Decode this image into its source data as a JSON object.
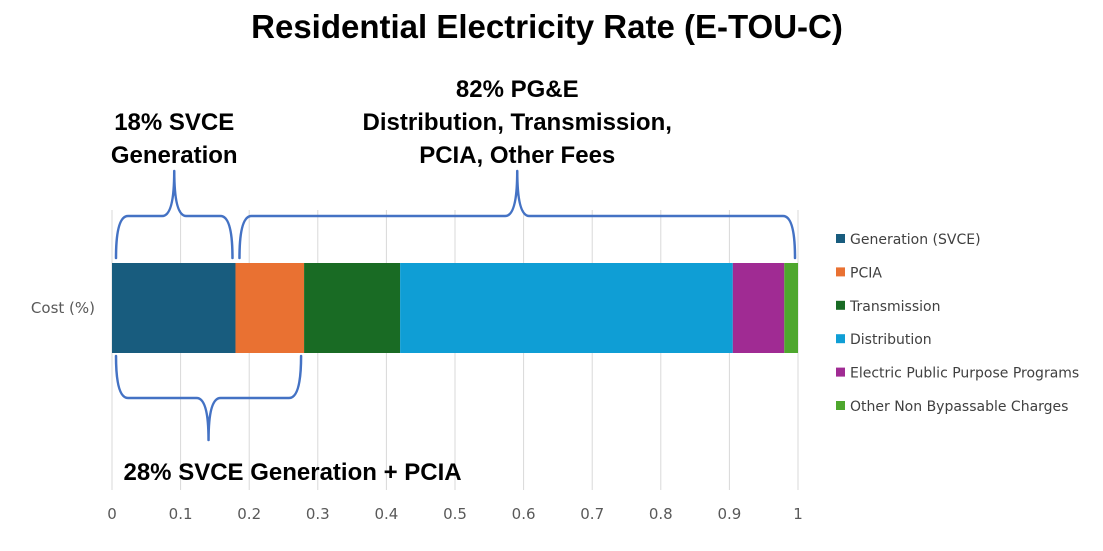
{
  "chart_data": {
    "type": "bar",
    "orientation": "horizontal",
    "stacked": true,
    "title": "Residential Electricity Rate (E-TOU-C)",
    "categories": [
      "Cost (%)"
    ],
    "xlim": [
      0,
      1
    ],
    "xticks": [
      "0",
      "0.1",
      "0.2",
      "0.3",
      "0.4",
      "0.5",
      "0.6",
      "0.7",
      "0.8",
      "0.9",
      "1"
    ],
    "grid": true,
    "legend_position": "right",
    "series": [
      {
        "name": "Generation (SVCE)",
        "values": [
          0.18
        ],
        "color": "#185c7e"
      },
      {
        "name": "PCIA",
        "values": [
          0.1
        ],
        "color": "#e97132"
      },
      {
        "name": "Transmission",
        "values": [
          0.14
        ],
        "color": "#196b24"
      },
      {
        "name": "Distribution",
        "values": [
          0.485
        ],
        "color": "#0f9ed5"
      },
      {
        "name": "Electric Public Purpose Programs",
        "values": [
          0.075
        ],
        "color": "#a02b93"
      },
      {
        "name": "Other Non Bypassable Charges",
        "values": [
          0.02
        ],
        "color": "#4ea72e"
      }
    ],
    "annotations": [
      {
        "lines": [
          "18% SVCE",
          "Generation"
        ],
        "from": 0,
        "to": 0.18,
        "side": "above"
      },
      {
        "lines": [
          "82% PG&E",
          "Distribution, Transmission,",
          "PCIA, Other Fees"
        ],
        "from": 0.18,
        "to": 1,
        "side": "above"
      },
      {
        "lines": [
          "28% SVCE Generation + PCIA"
        ],
        "from": 0,
        "to": 0.28,
        "side": "below"
      }
    ]
  }
}
